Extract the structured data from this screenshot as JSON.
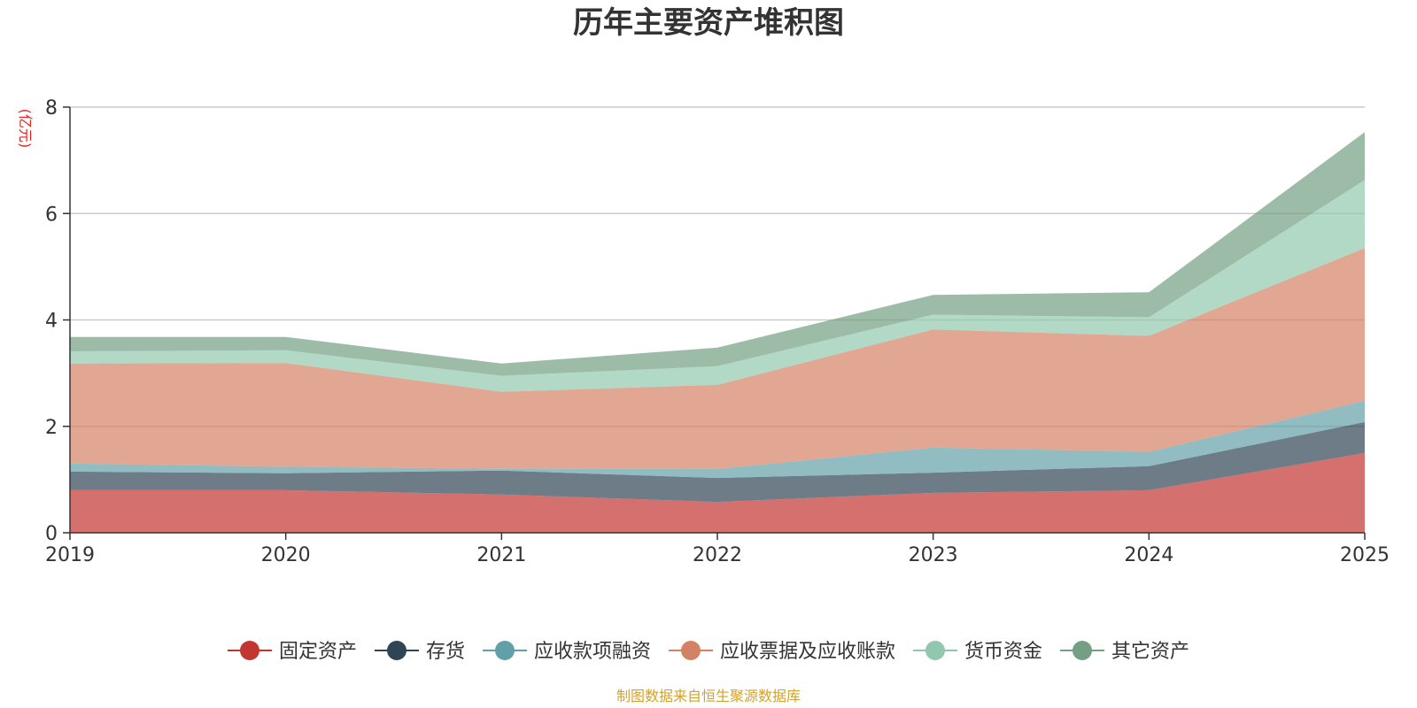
{
  "chart_data": {
    "type": "area",
    "stacked": true,
    "title": "历年主要资产堆积图",
    "unit_label": "(亿元)",
    "x": [
      "2019",
      "2020",
      "2021",
      "2022",
      "2023",
      "2024",
      "2025"
    ],
    "ylim": [
      0,
      8
    ],
    "yticks": [
      "0",
      "2",
      "4",
      "6",
      "8"
    ],
    "grid": true,
    "legend_position": "bottom",
    "source": "制图数据来自恒生聚源数据库",
    "series": [
      {
        "name": "固定资产",
        "color": "#c23531",
        "values": [
          0.8,
          0.8,
          0.72,
          0.58,
          0.75,
          0.8,
          1.5
        ]
      },
      {
        "name": "存货",
        "color": "#2f4554",
        "values": [
          0.35,
          0.32,
          0.45,
          0.45,
          0.38,
          0.45,
          0.58
        ]
      },
      {
        "name": "应收款项融资",
        "color": "#61a0a8",
        "values": [
          0.15,
          0.12,
          0.03,
          0.17,
          0.47,
          0.27,
          0.4
        ]
      },
      {
        "name": "应收票据及应收账款",
        "color": "#d48265",
        "values": [
          1.88,
          1.95,
          1.45,
          1.58,
          2.22,
          2.18,
          2.87
        ]
      },
      {
        "name": "货币资金",
        "color": "#91c7ae",
        "values": [
          0.23,
          0.24,
          0.3,
          0.35,
          0.28,
          0.35,
          1.28
        ]
      },
      {
        "name": "其它资产",
        "color": "#749f83",
        "values": [
          0.27,
          0.25,
          0.23,
          0.35,
          0.37,
          0.47,
          0.9
        ]
      }
    ]
  }
}
